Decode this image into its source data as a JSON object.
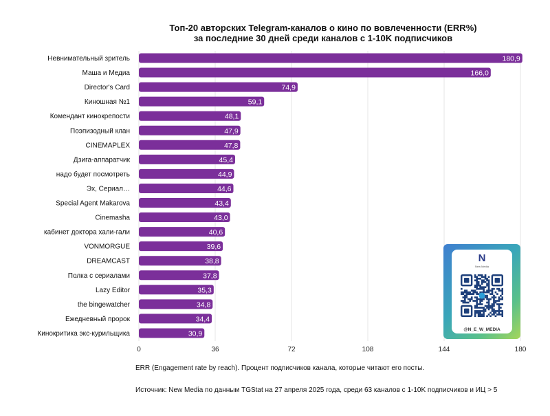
{
  "chart_data": {
    "type": "bar",
    "orientation": "horizontal",
    "title_line1": "Топ-20 авторских Telegram-каналов о кино по вовлеченности (ERR%)",
    "title_line2": "за последние 30 дней среди каналов с 1-10K подписчиков",
    "categories": [
      "Невнимательный зритель",
      "Маша и Медиа",
      "Director's Card",
      "Киношная №1",
      "Комендант кинокрепости",
      "Поэпизодный клан",
      "CINEMAPLEX",
      "Дзига-аппаратчик",
      "надо будет посмотреть",
      "Эх, Сериал…",
      "Special Agent Makarova",
      "Cinemasha",
      "кабинет доктора хали-гали",
      "VONMORGUE",
      "DREAMCAST",
      "Полка с сериалами",
      "Lazy Editor",
      "the bingewatcher",
      "Ежедневный пророк",
      "Кинокритика экс-курильщика"
    ],
    "values": [
      180.9,
      166.0,
      74.9,
      59.1,
      48.1,
      47.9,
      47.8,
      45.4,
      44.9,
      44.6,
      43.4,
      43.0,
      40.6,
      39.6,
      38.8,
      37.8,
      35.3,
      34.8,
      34.4,
      30.9
    ],
    "value_labels": [
      "180,9",
      "166,0",
      "74,9",
      "59,1",
      "48,1",
      "47,9",
      "47,8",
      "45,4",
      "44,9",
      "44,6",
      "43,4",
      "43,0",
      "40,6",
      "39,6",
      "38,8",
      "37,8",
      "35,3",
      "34,8",
      "34,4",
      "30,9"
    ],
    "xticks": [
      0,
      36,
      72,
      108,
      144,
      180
    ],
    "xlim": [
      0,
      180
    ],
    "xlabel": "",
    "ylabel": "",
    "grid": true,
    "legend": "none",
    "bar_color": "#7b2f9a"
  },
  "notes": {
    "err": "ERR (Engagement rate by reach). Процент подписчиков канала, которые читают его посты.",
    "source": "Источник: New Media по данным TGStat на 27 апреля 2025 года, среди 63 каналов с 1-10K подписчиков и ИЦ > 5"
  },
  "qr_card": {
    "logo": "N",
    "logo_sub": "New Media",
    "handle": "@N_E_W_MEDIA"
  }
}
